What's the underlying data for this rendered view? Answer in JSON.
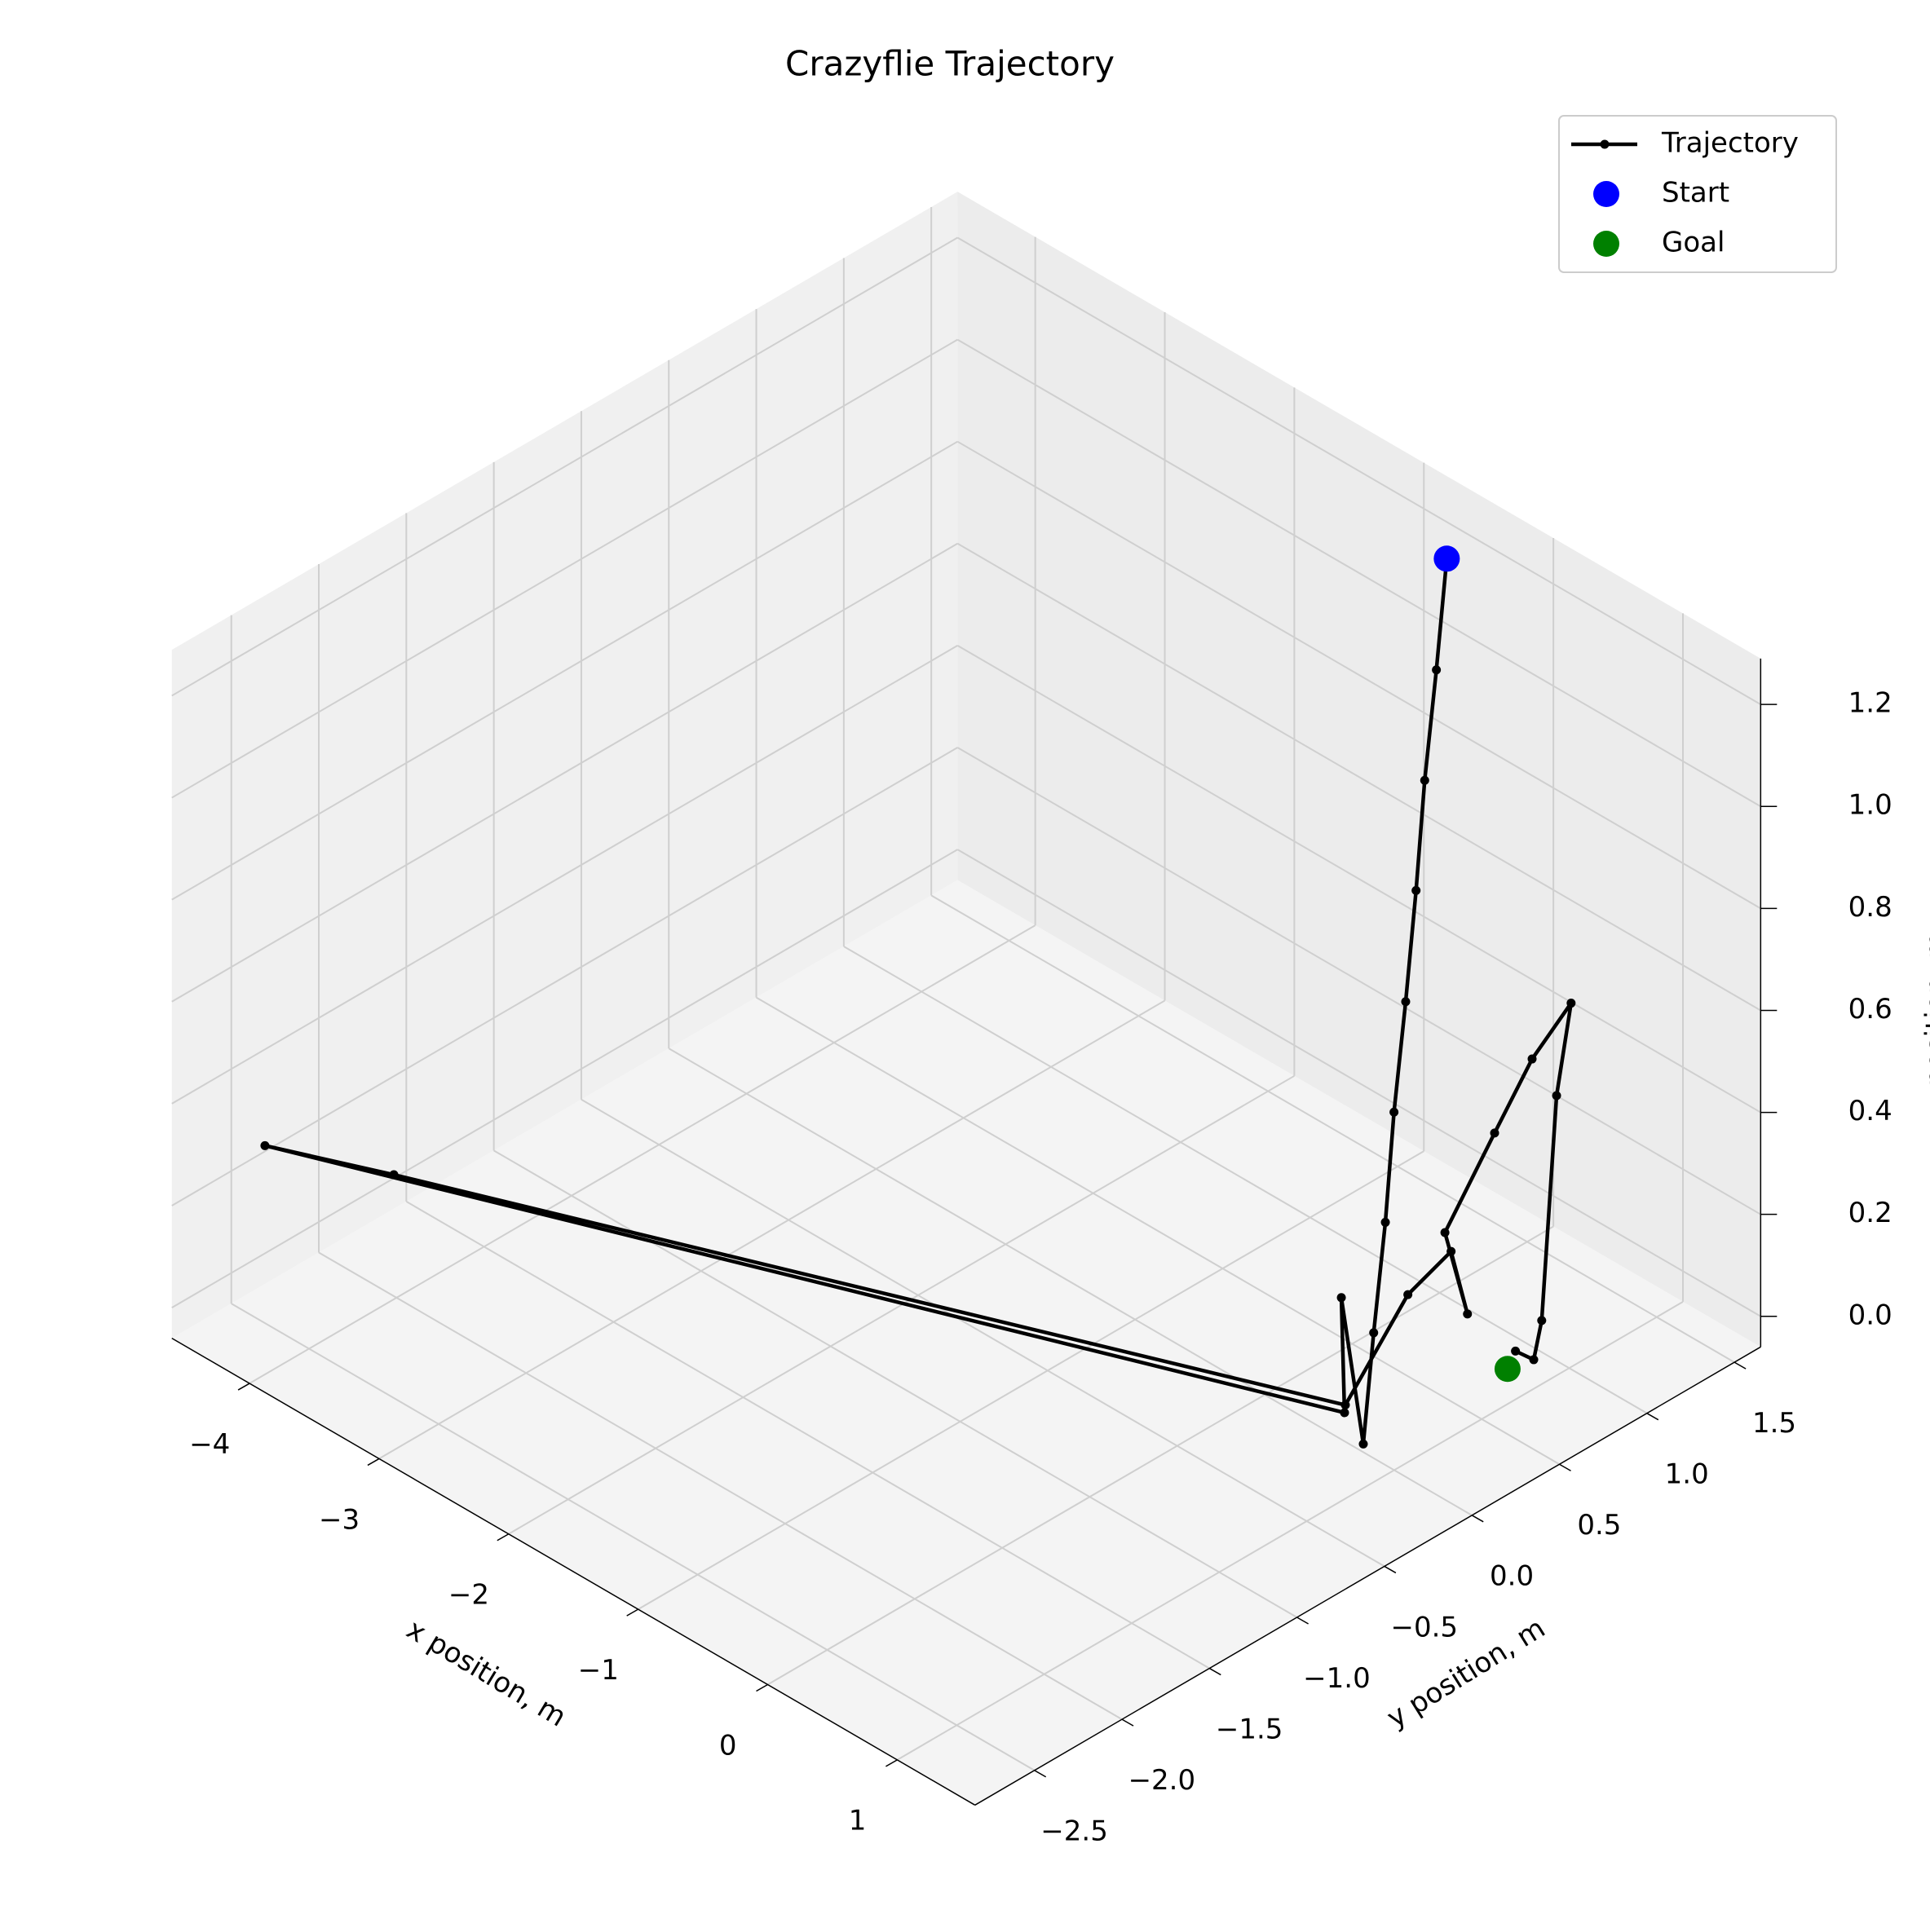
{
  "chart_data": {
    "type": "line3d",
    "title": "Crazyflie Trajectory",
    "xlabel": "x position, m",
    "ylabel": "y position, m",
    "zlabel": "z position, m",
    "xlim": [
      -4.6,
      1.6
    ],
    "ylim": [
      -2.84,
      1.65
    ],
    "zlim": [
      -0.06,
      1.29
    ],
    "xticks": [
      {
        "value": -4,
        "label": "−4"
      },
      {
        "value": -3,
        "label": "−3"
      },
      {
        "value": -2,
        "label": "−2"
      },
      {
        "value": -1,
        "label": "−1"
      },
      0,
      1
    ],
    "yticks": [
      {
        "value": -2.5,
        "label": "−2.5"
      },
      {
        "value": -2,
        "label": "−2.0"
      },
      {
        "value": -1.5,
        "label": "−1.5"
      },
      {
        "value": -1,
        "label": "−1.0"
      },
      {
        "value": -0.5,
        "label": "−0.5"
      },
      {
        "value": 0,
        "label": "0.0"
      },
      0.5,
      {
        "value": 1,
        "label": "1.0"
      },
      1.5
    ],
    "zticks": [
      {
        "value": 0,
        "label": "0.0"
      },
      0.2,
      0.4,
      0.6,
      0.8,
      {
        "value": 1,
        "label": "1.0"
      },
      1.2
    ],
    "grid": true,
    "legend": "upper right",
    "series": [
      {
        "name": "Trajectory",
        "color": "#000000",
        "mode": "line",
        "x": [
          -0.58,
          -0.39,
          -0.21,
          -0.02,
          0.17,
          0.35,
          0.54,
          0.72,
          0.91,
          0.7,
          0.63,
          -4.3,
          -3.71,
          0.65,
          0.43,
          0.48,
          0.62,
          0.5,
          0.37,
          0.43,
          0.65,
          0.7,
          0.95,
          1.01,
          0.95
        ],
        "y": [
          1.47,
          1.27,
          1.07,
          0.88,
          0.68,
          0.48,
          0.29,
          0.09,
          -0.11,
          -0.08,
          -0.01,
          -2.53,
          -2.23,
          -0.02,
          0.5,
          0.71,
          0.7,
          0.66,
          1.04,
          1.21,
          1.27,
          1.15,
          0.88,
          0.79,
          0.73
        ],
        "z": [
          1.2,
          1.05,
          0.9,
          0.75,
          0.6,
          0.45,
          0.3,
          0.15,
          0,
          0.25,
          0,
          0.3,
          0.27,
          0.02,
          0.1,
          0.15,
          0.05,
          0.2,
          0.3,
          0.42,
          0.55,
          0.4,
          0.05,
          0,
          0.02
        ]
      },
      {
        "name": "Start",
        "color": "#0000ff",
        "mode": "scatter",
        "x": [
          -0.58
        ],
        "y": [
          1.47
        ],
        "z": [
          1.2
        ]
      },
      {
        "name": "Goal",
        "color": "#008000",
        "mode": "scatter",
        "x": [
          0.97
        ],
        "y": [
          0.67
        ],
        "z": [
          0
        ]
      }
    ]
  }
}
